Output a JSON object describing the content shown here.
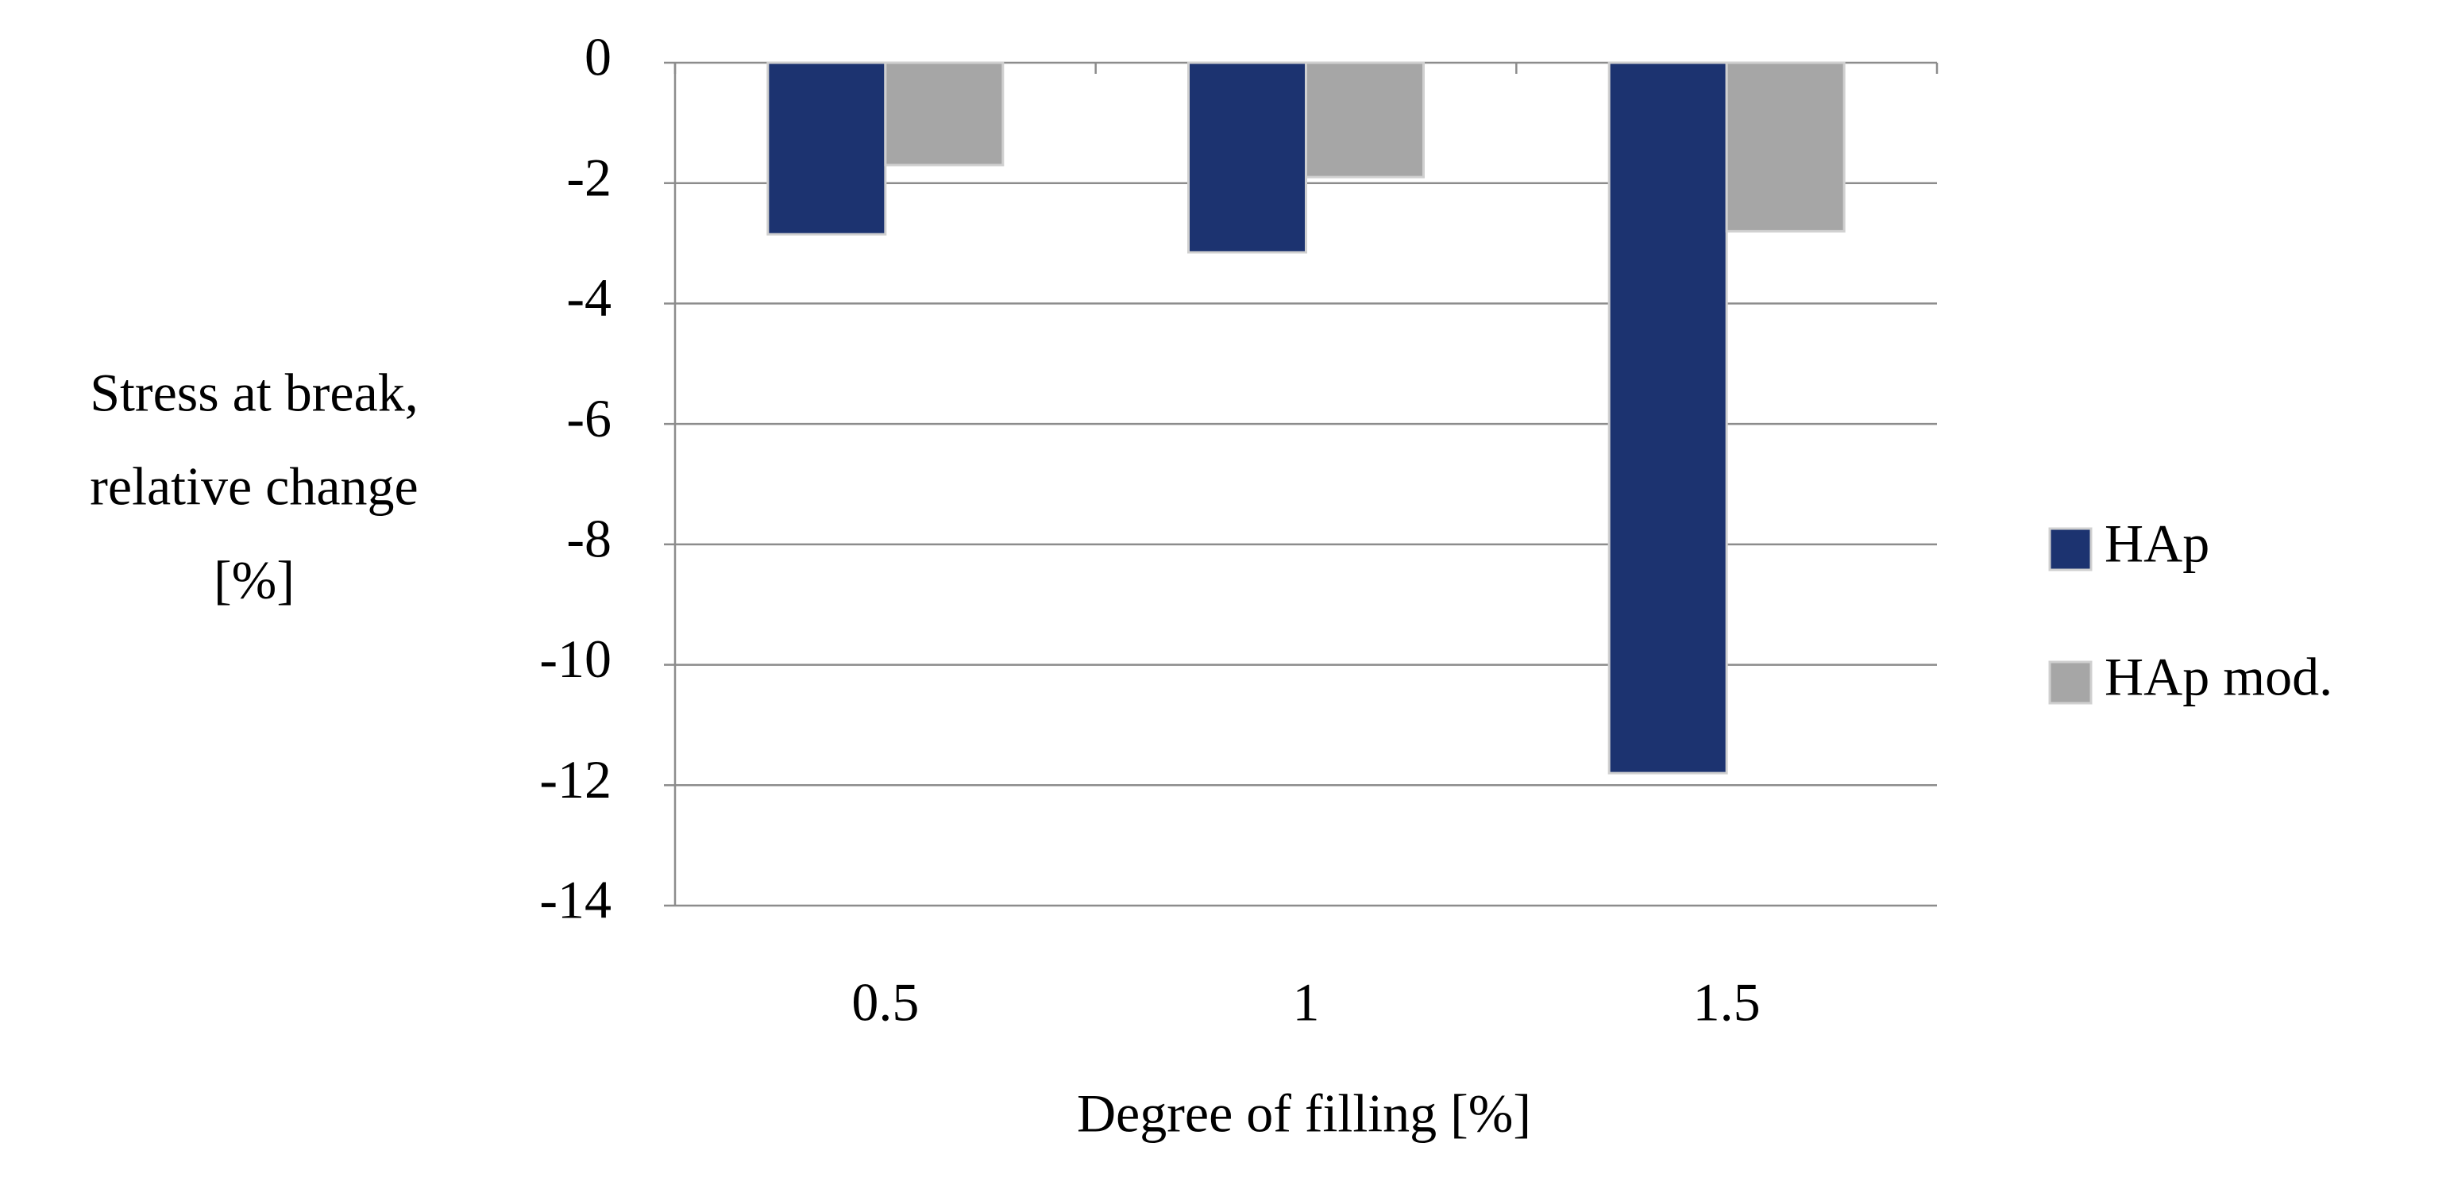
{
  "chart_data": {
    "type": "bar",
    "ylabel": [
      "Stress at break,",
      "relative change",
      "[%]"
    ],
    "xlabel": "Degree of filling [%]",
    "categories": [
      "0.5",
      "1",
      "1.5"
    ],
    "series": [
      {
        "name": "HAp",
        "color": "#1c3370",
        "values": [
          -2.85,
          -3.15,
          -11.8
        ]
      },
      {
        "name": "HAp mod.",
        "color": "#a6a6a6",
        "values": [
          -1.7,
          -1.9,
          -2.8
        ]
      }
    ],
    "ylim": [
      -14,
      0
    ],
    "yticks": [
      0,
      -2,
      -4,
      -6,
      -8,
      -10,
      -12,
      -14
    ],
    "grid": true
  }
}
